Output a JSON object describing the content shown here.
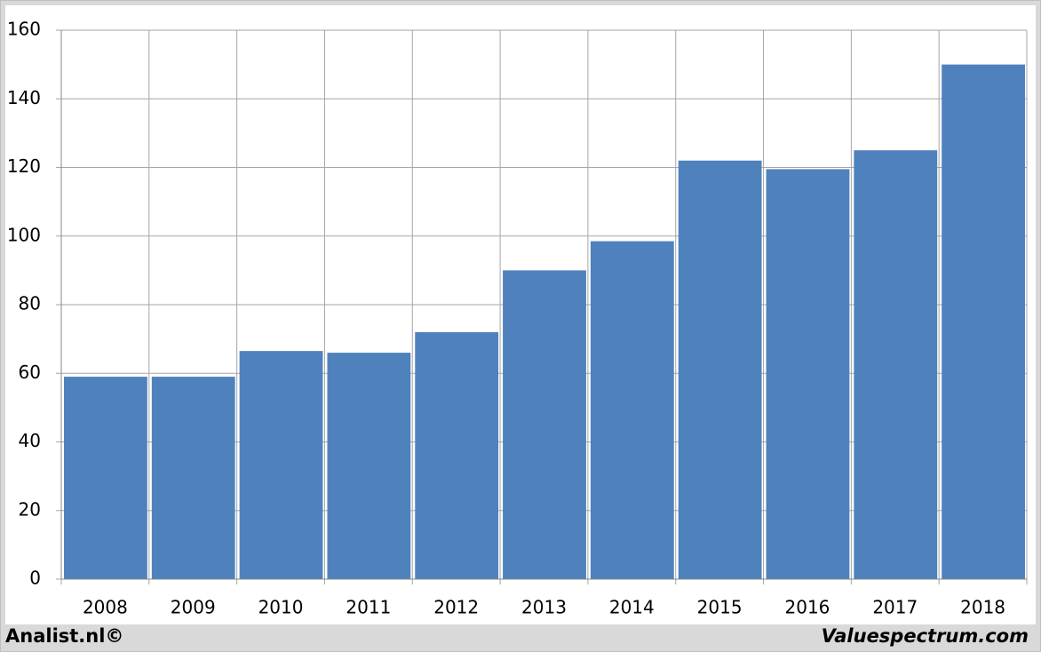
{
  "chart_data": {
    "type": "bar",
    "categories": [
      "2008",
      "2009",
      "2010",
      "2011",
      "2012",
      "2013",
      "2014",
      "2015",
      "2016",
      "2017",
      "2018"
    ],
    "values": [
      59,
      59,
      66.5,
      66,
      72,
      90,
      98.5,
      122,
      119.5,
      125,
      150
    ],
    "color": "#4f81bd",
    "ylim": [
      0,
      160
    ],
    "yticks": [
      0,
      20,
      40,
      60,
      80,
      100,
      120,
      140,
      160
    ],
    "grid": true,
    "credit_left": "Analist.nl©",
    "credit_right": "Valuespectrum.com"
  }
}
